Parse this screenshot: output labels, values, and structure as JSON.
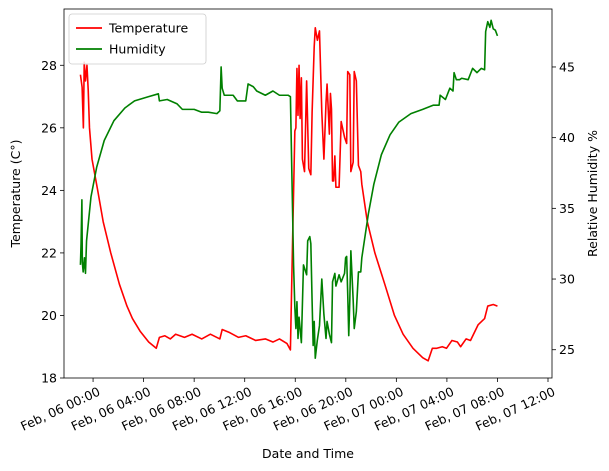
{
  "chart_data": {
    "type": "line",
    "xlabel": "Date and Time",
    "ylabel_left": "Temperature (C°)",
    "ylabel_right": "Relative Humidity %",
    "y_left_lim": [
      18,
      29.8
    ],
    "y_right_lim": [
      23,
      49.1
    ],
    "y_left_ticks": [
      18,
      20,
      22,
      24,
      26,
      28
    ],
    "y_right_ticks": [
      25,
      30,
      35,
      40,
      45
    ],
    "x_ticks": [
      {
        "t": "2024-02-06T00:00",
        "label": "Feb, 06 00:00"
      },
      {
        "t": "2024-02-06T04:00",
        "label": "Feb, 06 04:00"
      },
      {
        "t": "2024-02-06T08:00",
        "label": "Feb, 06 08:00"
      },
      {
        "t": "2024-02-06T12:00",
        "label": "Feb, 06 12:00"
      },
      {
        "t": "2024-02-06T16:00",
        "label": "Feb, 06 16:00"
      },
      {
        "t": "2024-02-06T20:00",
        "label": "Feb, 06 20:00"
      },
      {
        "t": "2024-02-07T00:00",
        "label": "Feb, 07 00:00"
      },
      {
        "t": "2024-02-07T04:00",
        "label": "Feb, 07 04:00"
      },
      {
        "t": "2024-02-07T08:00",
        "label": "Feb, 07 08:00"
      },
      {
        "t": "2024-02-07T12:00",
        "label": "Feb, 07 12:00"
      }
    ],
    "x_range": [
      "2024-02-05T21:42",
      "2024-02-07T12:19"
    ],
    "legend": {
      "placement": "upper-left"
    },
    "grid": false,
    "series": [
      {
        "name": "Temperature",
        "axis": "left",
        "color": "#ff0000",
        "points": [
          [
            "2024-02-05T23:00",
            27.7
          ],
          [
            "2024-02-05T23:08",
            27.3
          ],
          [
            "2024-02-05T23:14",
            26.0
          ],
          [
            "2024-02-05T23:18",
            28.1
          ],
          [
            "2024-02-05T23:24",
            27.5
          ],
          [
            "2024-02-05T23:31",
            28.0
          ],
          [
            "2024-02-05T23:37",
            27.2
          ],
          [
            "2024-02-05T23:43",
            26.0
          ],
          [
            "2024-02-05T23:55",
            25.0
          ],
          [
            "2024-02-06T00:22",
            24.0
          ],
          [
            "2024-02-06T00:48",
            23.0
          ],
          [
            "2024-02-06T01:24",
            22.0
          ],
          [
            "2024-02-06T02:05",
            21.0
          ],
          [
            "2024-02-06T02:41",
            20.3
          ],
          [
            "2024-02-06T03:07",
            19.9
          ],
          [
            "2024-02-06T03:43",
            19.5
          ],
          [
            "2024-02-06T04:24",
            19.15
          ],
          [
            "2024-02-06T05:00",
            18.95
          ],
          [
            "2024-02-06T05:15",
            19.3
          ],
          [
            "2024-02-06T05:41",
            19.35
          ],
          [
            "2024-02-06T06:07",
            19.25
          ],
          [
            "2024-02-06T06:32",
            19.4
          ],
          [
            "2024-02-06T07:14",
            19.3
          ],
          [
            "2024-02-06T07:50",
            19.4
          ],
          [
            "2024-02-06T08:36",
            19.25
          ],
          [
            "2024-02-06T09:17",
            19.4
          ],
          [
            "2024-02-06T10:02",
            19.25
          ],
          [
            "2024-02-06T10:13",
            19.55
          ],
          [
            "2024-02-06T10:49",
            19.45
          ],
          [
            "2024-02-06T11:30",
            19.3
          ],
          [
            "2024-02-06T12:05",
            19.35
          ],
          [
            "2024-02-06T12:52",
            19.2
          ],
          [
            "2024-02-06T13:38",
            19.25
          ],
          [
            "2024-02-06T14:14",
            19.15
          ],
          [
            "2024-02-06T14:45",
            19.25
          ],
          [
            "2024-02-06T15:21",
            19.1
          ],
          [
            "2024-02-06T15:37",
            18.9
          ],
          [
            "2024-02-06T15:47",
            22.3
          ],
          [
            "2024-02-06T15:58",
            25.9
          ],
          [
            "2024-02-06T16:03",
            26.0
          ],
          [
            "2024-02-06T16:08",
            27.9
          ],
          [
            "2024-02-06T16:13",
            26.4
          ],
          [
            "2024-02-06T16:18",
            28.0
          ],
          [
            "2024-02-06T16:23",
            26.3
          ],
          [
            "2024-02-06T16:29",
            27.6
          ],
          [
            "2024-02-06T16:34",
            25.0
          ],
          [
            "2024-02-06T16:44",
            24.6
          ],
          [
            "2024-02-06T16:54",
            27.5
          ],
          [
            "2024-02-06T17:04",
            24.7
          ],
          [
            "2024-02-06T17:14",
            24.5
          ],
          [
            "2024-02-06T17:20",
            26.5
          ],
          [
            "2024-02-06T17:30",
            28.6
          ],
          [
            "2024-02-06T17:35",
            29.2
          ],
          [
            "2024-02-06T17:45",
            28.8
          ],
          [
            "2024-02-06T17:55",
            29.1
          ],
          [
            "2024-02-06T18:06",
            26.5
          ],
          [
            "2024-02-06T18:16",
            25.0
          ],
          [
            "2024-02-06T18:26",
            26.8
          ],
          [
            "2024-02-06T18:31",
            27.4
          ],
          [
            "2024-02-06T18:42",
            25.8
          ],
          [
            "2024-02-06T18:47",
            27.1
          ],
          [
            "2024-02-06T18:52",
            26.6
          ],
          [
            "2024-02-06T18:57",
            24.3
          ],
          [
            "2024-02-06T19:02",
            24.3
          ],
          [
            "2024-02-06T19:08",
            25.1
          ],
          [
            "2024-02-06T19:13",
            24.1
          ],
          [
            "2024-02-06T19:28",
            24.1
          ],
          [
            "2024-02-06T19:38",
            26.2
          ],
          [
            "2024-02-06T19:54",
            25.7
          ],
          [
            "2024-02-06T20:04",
            25.5
          ],
          [
            "2024-02-06T20:09",
            27.8
          ],
          [
            "2024-02-06T20:19",
            27.7
          ],
          [
            "2024-02-06T20:24",
            24.6
          ],
          [
            "2024-02-06T20:35",
            24.9
          ],
          [
            "2024-02-06T20:40",
            27.8
          ],
          [
            "2024-02-06T20:50",
            27.5
          ],
          [
            "2024-02-06T21:00",
            24.8
          ],
          [
            "2024-02-06T21:11",
            24.6
          ],
          [
            "2024-02-06T21:16",
            24.2
          ],
          [
            "2024-02-06T21:42",
            23.0
          ],
          [
            "2024-02-06T22:18",
            22.0
          ],
          [
            "2024-02-06T23:05",
            21.0
          ],
          [
            "2024-02-06T23:51",
            20.0
          ],
          [
            "2024-02-07T00:32",
            19.4
          ],
          [
            "2024-02-07T01:19",
            18.95
          ],
          [
            "2024-02-07T02:05",
            18.65
          ],
          [
            "2024-02-07T02:31",
            18.55
          ],
          [
            "2024-02-07T02:51",
            18.95
          ],
          [
            "2024-02-07T03:12",
            18.95
          ],
          [
            "2024-02-07T03:38",
            19.0
          ],
          [
            "2024-02-07T03:58",
            18.95
          ],
          [
            "2024-02-07T04:24",
            19.2
          ],
          [
            "2024-02-07T04:50",
            19.15
          ],
          [
            "2024-02-07T05:05",
            19.0
          ],
          [
            "2024-02-07T05:31",
            19.25
          ],
          [
            "2024-02-07T05:52",
            19.2
          ],
          [
            "2024-02-07T06:28",
            19.7
          ],
          [
            "2024-02-07T06:59",
            19.9
          ],
          [
            "2024-02-07T07:14",
            20.3
          ],
          [
            "2024-02-07T07:40",
            20.35
          ],
          [
            "2024-02-07T08:00",
            20.3
          ]
        ]
      },
      {
        "name": "Humidity",
        "axis": "right",
        "color": "#008000",
        "points": [
          [
            "2024-02-05T23:00",
            31.0
          ],
          [
            "2024-02-05T23:03",
            32.5
          ],
          [
            "2024-02-05T23:07",
            35.6
          ],
          [
            "2024-02-05T23:09",
            31.2
          ],
          [
            "2024-02-05T23:13",
            30.5
          ],
          [
            "2024-02-05T23:19",
            31.5
          ],
          [
            "2024-02-05T23:24",
            30.4
          ],
          [
            "2024-02-05T23:29",
            32.7
          ],
          [
            "2024-02-05T23:50",
            35.8
          ],
          [
            "2024-02-06T00:17",
            37.9
          ],
          [
            "2024-02-06T00:53",
            39.8
          ],
          [
            "2024-02-06T01:39",
            41.2
          ],
          [
            "2024-02-06T02:31",
            42.1
          ],
          [
            "2024-02-06T03:17",
            42.6
          ],
          [
            "2024-02-06T04:24",
            42.9
          ],
          [
            "2024-02-06T05:10",
            43.1
          ],
          [
            "2024-02-06T05:15",
            42.6
          ],
          [
            "2024-02-06T05:52",
            42.7
          ],
          [
            "2024-02-06T06:38",
            42.4
          ],
          [
            "2024-02-06T07:04",
            42.0
          ],
          [
            "2024-02-06T08:00",
            42.0
          ],
          [
            "2024-02-06T08:36",
            41.8
          ],
          [
            "2024-02-06T09:07",
            41.8
          ],
          [
            "2024-02-06T09:48",
            41.7
          ],
          [
            "2024-02-06T10:02",
            41.9
          ],
          [
            "2024-02-06T10:08",
            45.0
          ],
          [
            "2024-02-06T10:13",
            43.5
          ],
          [
            "2024-02-06T10:23",
            43.0
          ],
          [
            "2024-02-06T11:05",
            43.0
          ],
          [
            "2024-02-06T11:25",
            42.6
          ],
          [
            "2024-02-06T12:05",
            42.6
          ],
          [
            "2024-02-06T12:16",
            43.8
          ],
          [
            "2024-02-06T12:41",
            43.6
          ],
          [
            "2024-02-06T12:57",
            43.3
          ],
          [
            "2024-02-06T13:38",
            43.0
          ],
          [
            "2024-02-06T14:14",
            43.3
          ],
          [
            "2024-02-06T14:45",
            43.0
          ],
          [
            "2024-02-06T15:26",
            43.0
          ],
          [
            "2024-02-06T15:37",
            42.9
          ],
          [
            "2024-02-06T15:47",
            35.0
          ],
          [
            "2024-02-06T15:52",
            31.0
          ],
          [
            "2024-02-06T15:58",
            28.0
          ],
          [
            "2024-02-06T16:03",
            26.5
          ],
          [
            "2024-02-06T16:08",
            28.4
          ],
          [
            "2024-02-06T16:13",
            25.8
          ],
          [
            "2024-02-06T16:18",
            27.3
          ],
          [
            "2024-02-06T16:29",
            25.5
          ],
          [
            "2024-02-06T16:39",
            31.0
          ],
          [
            "2024-02-06T16:54",
            30.3
          ],
          [
            "2024-02-06T16:59",
            32.7
          ],
          [
            "2024-02-06T17:09",
            33.0
          ],
          [
            "2024-02-06T17:14",
            32.5
          ],
          [
            "2024-02-06T17:20",
            28.4
          ],
          [
            "2024-02-06T17:25",
            25.3
          ],
          [
            "2024-02-06T17:30",
            27.0
          ],
          [
            "2024-02-06T17:35",
            24.4
          ],
          [
            "2024-02-06T17:45",
            25.7
          ],
          [
            "2024-02-06T17:55",
            26.7
          ],
          [
            "2024-02-06T18:06",
            30.0
          ],
          [
            "2024-02-06T18:16",
            27.5
          ],
          [
            "2024-02-06T18:26",
            25.8
          ],
          [
            "2024-02-06T18:31",
            27.0
          ],
          [
            "2024-02-06T18:42",
            26.1
          ],
          [
            "2024-02-06T18:52",
            25.5
          ],
          [
            "2024-02-06T18:57",
            29.8
          ],
          [
            "2024-02-06T19:08",
            30.4
          ],
          [
            "2024-02-06T19:13",
            29.5
          ],
          [
            "2024-02-06T19:28",
            30.3
          ],
          [
            "2024-02-06T19:38",
            29.8
          ],
          [
            "2024-02-06T19:54",
            30.4
          ],
          [
            "2024-02-06T19:59",
            31.5
          ],
          [
            "2024-02-06T20:04",
            31.6
          ],
          [
            "2024-02-06T20:09",
            29.0
          ],
          [
            "2024-02-06T20:14",
            26.0
          ],
          [
            "2024-02-06T20:19",
            28.5
          ],
          [
            "2024-02-06T20:24",
            32.0
          ],
          [
            "2024-02-06T20:35",
            28.5
          ],
          [
            "2024-02-06T20:40",
            26.5
          ],
          [
            "2024-02-06T20:50",
            27.7
          ],
          [
            "2024-02-06T21:00",
            30.5
          ],
          [
            "2024-02-06T21:11",
            30.5
          ],
          [
            "2024-02-06T21:16",
            31.5
          ],
          [
            "2024-02-06T21:47",
            34.6
          ],
          [
            "2024-02-06T22:13",
            36.7
          ],
          [
            "2024-02-06T22:49",
            38.8
          ],
          [
            "2024-02-06T23:30",
            40.2
          ],
          [
            "2024-02-07T00:12",
            41.1
          ],
          [
            "2024-02-07T01:09",
            41.7
          ],
          [
            "2024-02-07T02:05",
            42.0
          ],
          [
            "2024-02-07T02:56",
            42.3
          ],
          [
            "2024-02-07T03:23",
            42.3
          ],
          [
            "2024-02-07T03:28",
            43.0
          ],
          [
            "2024-02-07T03:53",
            42.7
          ],
          [
            "2024-02-07T04:14",
            43.5
          ],
          [
            "2024-02-07T04:29",
            43.3
          ],
          [
            "2024-02-07T04:34",
            44.6
          ],
          [
            "2024-02-07T04:45",
            44.1
          ],
          [
            "2024-02-07T05:00",
            44.1
          ],
          [
            "2024-02-07T05:10",
            44.2
          ],
          [
            "2024-02-07T05:41",
            44.1
          ],
          [
            "2024-02-07T06:02",
            44.9
          ],
          [
            "2024-02-07T06:23",
            44.6
          ],
          [
            "2024-02-07T06:43",
            44.9
          ],
          [
            "2024-02-07T06:59",
            44.8
          ],
          [
            "2024-02-07T07:04",
            47.5
          ],
          [
            "2024-02-07T07:14",
            48.2
          ],
          [
            "2024-02-07T07:24",
            47.8
          ],
          [
            "2024-02-07T07:30",
            48.3
          ],
          [
            "2024-02-07T07:40",
            47.7
          ],
          [
            "2024-02-07T07:50",
            47.6
          ],
          [
            "2024-02-07T08:00",
            47.2
          ]
        ]
      }
    ]
  }
}
